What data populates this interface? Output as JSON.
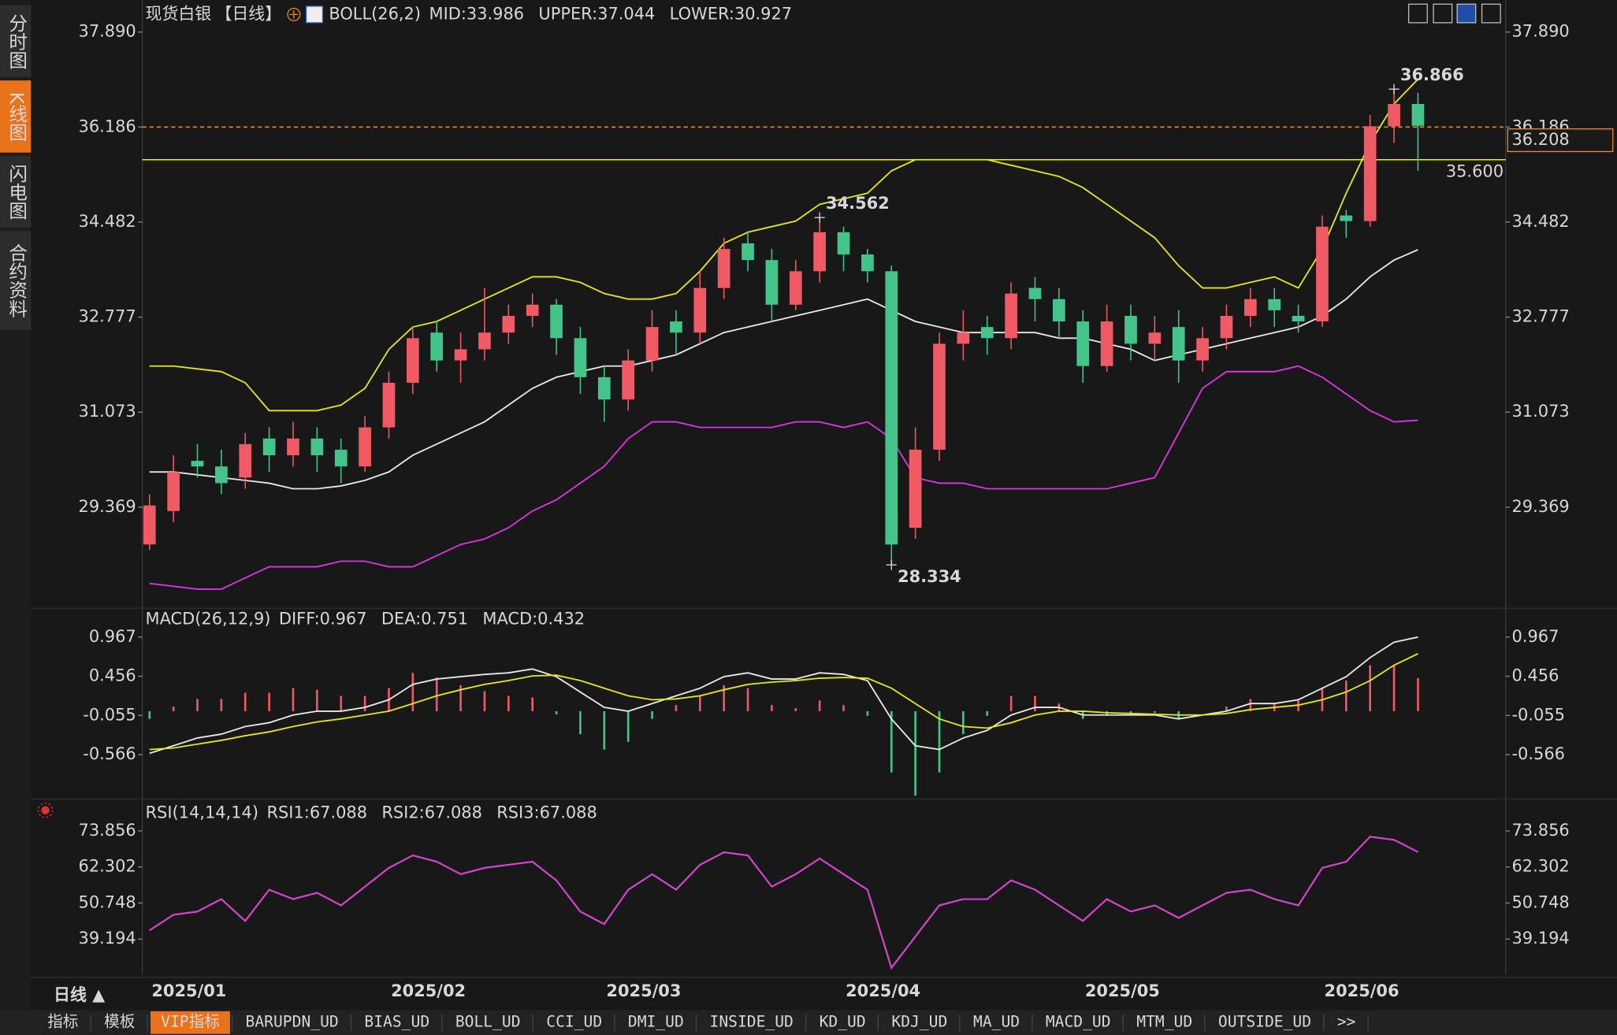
{
  "chart_data": [
    {
      "type": "candlestick",
      "title": "现货白银",
      "period": "【日线】",
      "indicator": "BOLL(26,2)",
      "categories": [
        "2025/01",
        null,
        null,
        null,
        null,
        null,
        null,
        null,
        null,
        null,
        "2025/02",
        null,
        null,
        null,
        null,
        null,
        null,
        null,
        null,
        "2025/03",
        null,
        null,
        null,
        null,
        null,
        null,
        null,
        null,
        null,
        "2025/04",
        null,
        null,
        null,
        null,
        null,
        null,
        null,
        null,
        null,
        "2025/05",
        null,
        null,
        null,
        null,
        null,
        null,
        null,
        null,
        null,
        "2025/06",
        null,
        null,
        null,
        null
      ],
      "open": [
        28.7,
        29.3,
        30.2,
        30.1,
        29.9,
        30.6,
        30.3,
        30.6,
        30.4,
        30.1,
        30.8,
        31.6,
        32.5,
        32.0,
        32.2,
        32.5,
        32.8,
        33.0,
        32.4,
        31.7,
        31.3,
        32.0,
        32.7,
        32.5,
        33.3,
        34.1,
        33.8,
        33.0,
        33.6,
        34.3,
        33.9,
        33.6,
        29.0,
        30.4,
        32.3,
        32.6,
        32.4,
        33.3,
        33.1,
        32.7,
        31.9,
        32.8,
        32.3,
        32.6,
        32.0,
        32.4,
        32.8,
        33.1,
        32.8,
        32.7,
        34.6,
        34.5,
        36.2,
        36.6
      ],
      "high": [
        29.6,
        30.3,
        30.5,
        30.4,
        30.7,
        30.8,
        30.9,
        30.8,
        30.6,
        31.0,
        31.8,
        32.6,
        32.7,
        32.5,
        33.3,
        33.0,
        33.2,
        33.1,
        32.6,
        31.9,
        32.2,
        32.9,
        32.9,
        33.6,
        34.2,
        34.3,
        34.0,
        33.8,
        34.562,
        34.4,
        34.0,
        33.7,
        30.8,
        32.5,
        32.9,
        32.8,
        33.4,
        33.5,
        33.3,
        32.9,
        33.0,
        33.0,
        32.8,
        32.9,
        32.6,
        33.0,
        33.3,
        33.3,
        33.0,
        34.6,
        34.7,
        36.4,
        36.866,
        36.8
      ],
      "low": [
        28.6,
        29.1,
        29.9,
        29.6,
        29.7,
        30.0,
        30.1,
        30.0,
        29.8,
        30.0,
        30.6,
        31.4,
        31.8,
        31.6,
        32.0,
        32.3,
        32.6,
        32.1,
        31.4,
        30.9,
        31.1,
        31.8,
        32.1,
        32.3,
        33.1,
        33.6,
        32.7,
        32.9,
        33.4,
        33.6,
        33.4,
        28.334,
        28.8,
        30.2,
        32.0,
        32.1,
        32.2,
        32.7,
        32.4,
        31.6,
        31.8,
        32.0,
        32.0,
        31.6,
        31.8,
        32.2,
        32.6,
        32.6,
        32.5,
        32.6,
        34.2,
        34.4,
        35.9,
        35.4
      ],
      "close": [
        29.4,
        30.0,
        30.1,
        29.8,
        30.5,
        30.3,
        30.6,
        30.3,
        30.1,
        30.8,
        31.6,
        32.4,
        32.0,
        32.2,
        32.5,
        32.8,
        33.0,
        32.4,
        31.7,
        31.3,
        32.0,
        32.6,
        32.5,
        33.3,
        34.0,
        33.8,
        33.0,
        33.6,
        34.3,
        33.9,
        33.6,
        28.7,
        30.4,
        32.3,
        32.5,
        32.4,
        33.2,
        33.1,
        32.7,
        31.9,
        32.7,
        32.3,
        32.5,
        32.0,
        32.4,
        32.8,
        33.1,
        32.9,
        32.7,
        34.4,
        34.5,
        36.2,
        36.6,
        36.208
      ],
      "up_color": "#ef5a64",
      "down_color": "#44c48a",
      "series": [
        {
          "name": "MID:33.986",
          "color": "#e8e8e8",
          "values": [
            30.0,
            30.0,
            29.95,
            29.9,
            29.85,
            29.8,
            29.7,
            29.7,
            29.75,
            29.85,
            30.0,
            30.3,
            30.5,
            30.7,
            30.9,
            31.2,
            31.5,
            31.7,
            31.8,
            31.9,
            31.9,
            32.0,
            32.1,
            32.3,
            32.5,
            32.6,
            32.7,
            32.8,
            32.9,
            33.0,
            33.1,
            32.9,
            32.7,
            32.6,
            32.5,
            32.5,
            32.5,
            32.5,
            32.4,
            32.4,
            32.3,
            32.2,
            32.0,
            32.1,
            32.2,
            32.3,
            32.4,
            32.5,
            32.6,
            32.8,
            33.1,
            33.5,
            33.8,
            33.986
          ]
        },
        {
          "name": "UPPER:37.044",
          "color": "#e6e61e",
          "values": [
            31.9,
            31.9,
            31.85,
            31.8,
            31.6,
            31.1,
            31.1,
            31.1,
            31.2,
            31.5,
            32.2,
            32.6,
            32.7,
            32.9,
            33.1,
            33.3,
            33.5,
            33.5,
            33.4,
            33.2,
            33.1,
            33.1,
            33.2,
            33.6,
            34.1,
            34.3,
            34.4,
            34.5,
            34.8,
            34.9,
            35.0,
            35.4,
            35.6,
            35.6,
            35.6,
            35.6,
            35.5,
            35.4,
            35.3,
            35.1,
            34.8,
            34.5,
            34.2,
            33.7,
            33.3,
            33.3,
            33.4,
            33.5,
            33.3,
            34.0,
            35.0,
            35.9,
            36.6,
            37.044
          ]
        },
        {
          "name": "LOWER:30.927",
          "color": "#e032e6",
          "values": [
            28.0,
            27.95,
            27.9,
            27.9,
            28.1,
            28.3,
            28.3,
            28.3,
            28.4,
            28.4,
            28.3,
            28.3,
            28.5,
            28.7,
            28.8,
            29.0,
            29.3,
            29.5,
            29.8,
            30.1,
            30.6,
            30.9,
            30.9,
            30.8,
            30.8,
            30.8,
            30.8,
            30.9,
            30.9,
            30.8,
            30.9,
            30.6,
            29.9,
            29.8,
            29.8,
            29.7,
            29.7,
            29.7,
            29.7,
            29.7,
            29.7,
            29.8,
            29.9,
            30.7,
            31.5,
            31.8,
            31.8,
            31.8,
            31.9,
            31.7,
            31.4,
            31.1,
            30.9,
            30.927
          ]
        }
      ],
      "hlines": [
        {
          "value": 36.186,
          "color": "#e0882c",
          "style": "dashed"
        },
        {
          "value": 35.6,
          "label": "35.600",
          "color": "#f0f020",
          "style": "solid"
        }
      ],
      "labeled_highs": [
        28,
        52
      ],
      "labeled_lows": [
        31
      ],
      "last_color": "#f08a24",
      "ylim": [
        27.742,
        38.371
      ],
      "yticks": [
        {
          "value": 37.89,
          "label": "37.890"
        },
        36.186,
        34.482,
        32.777,
        31.073,
        29.369
      ]
    },
    {
      "type": "macd",
      "title": "MACD(26,12,9)",
      "up_color": "#ef5a64",
      "down_color": "#44c48a",
      "series": [
        {
          "name": "DIFF:0.967",
          "color": "#e8e8e8",
          "values": [
            -0.55,
            -0.45,
            -0.35,
            -0.3,
            -0.2,
            -0.15,
            -0.05,
            0.0,
            0.0,
            0.05,
            0.15,
            0.35,
            0.42,
            0.45,
            0.48,
            0.5,
            0.55,
            0.45,
            0.25,
            0.05,
            0.0,
            0.1,
            0.2,
            0.3,
            0.45,
            0.5,
            0.42,
            0.42,
            0.5,
            0.48,
            0.4,
            -0.1,
            -0.45,
            -0.5,
            -0.35,
            -0.25,
            -0.05,
            0.05,
            0.05,
            -0.05,
            -0.05,
            -0.05,
            -0.05,
            -0.1,
            -0.05,
            0.0,
            0.1,
            0.1,
            0.15,
            0.3,
            0.45,
            0.7,
            0.9,
            0.967
          ]
        },
        {
          "name": "DEA:0.751",
          "color": "#e6e61e",
          "values": [
            -0.5,
            -0.48,
            -0.43,
            -0.38,
            -0.32,
            -0.27,
            -0.2,
            -0.14,
            -0.1,
            -0.05,
            0.0,
            0.1,
            0.2,
            0.28,
            0.35,
            0.4,
            0.46,
            0.47,
            0.4,
            0.3,
            0.2,
            0.15,
            0.16,
            0.2,
            0.28,
            0.35,
            0.38,
            0.4,
            0.43,
            0.44,
            0.43,
            0.3,
            0.1,
            -0.1,
            -0.2,
            -0.22,
            -0.15,
            -0.05,
            0.0,
            0.0,
            -0.02,
            -0.03,
            -0.04,
            -0.05,
            -0.05,
            -0.03,
            0.02,
            0.05,
            0.08,
            0.15,
            0.25,
            0.4,
            0.6,
            0.751
          ]
        },
        {
          "name": "MACD:0.432",
          "color": "#e032e6",
          "kind": "bar",
          "values": [
            -0.1,
            0.06,
            0.16,
            0.16,
            0.24,
            0.24,
            0.3,
            0.28,
            0.2,
            0.2,
            0.3,
            0.5,
            0.44,
            0.34,
            0.26,
            0.2,
            0.18,
            -0.04,
            -0.3,
            -0.5,
            -0.4,
            -0.1,
            0.08,
            0.2,
            0.34,
            0.3,
            0.08,
            0.04,
            0.14,
            0.08,
            -0.06,
            -0.8,
            -1.1,
            -0.8,
            -0.3,
            -0.06,
            0.2,
            0.2,
            0.1,
            -0.1,
            -0.06,
            -0.04,
            -0.02,
            -0.1,
            0.0,
            0.06,
            0.16,
            0.1,
            0.14,
            0.3,
            0.4,
            0.6,
            0.6,
            0.432
          ]
        }
      ],
      "ylim": [
        -1.144,
        1.209
      ],
      "yticks": [
        0.967,
        0.456,
        -0.055,
        -0.566
      ]
    },
    {
      "type": "line",
      "title": "RSI(14,14,14)",
      "series": [
        {
          "name": "RSI1:67.088",
          "color": "#e8e8e8",
          "values": [
            42,
            47,
            48,
            52,
            45,
            55,
            52,
            54,
            50,
            56,
            62,
            66,
            64,
            60,
            62,
            63,
            64,
            58,
            48,
            44,
            55,
            60,
            55,
            63,
            67,
            66,
            56,
            60,
            65,
            60,
            55,
            30,
            40,
            50,
            52,
            52,
            58,
            55,
            50,
            45,
            52,
            48,
            50,
            46,
            50,
            54,
            55,
            52,
            50,
            62,
            64,
            72,
            71,
            67.088
          ]
        },
        {
          "name": "RSI2:67.088",
          "color": "#e6e61e",
          "values": [
            42,
            47,
            48,
            52,
            45,
            55,
            52,
            54,
            50,
            56,
            62,
            66,
            64,
            60,
            62,
            63,
            64,
            58,
            48,
            44,
            55,
            60,
            55,
            63,
            67,
            66,
            56,
            60,
            65,
            60,
            55,
            30,
            40,
            50,
            52,
            52,
            58,
            55,
            50,
            45,
            52,
            48,
            50,
            46,
            50,
            54,
            55,
            52,
            50,
            62,
            64,
            72,
            71,
            67.088
          ]
        },
        {
          "name": "RSI3:67.088",
          "color": "#e032e6",
          "values": [
            42,
            47,
            48,
            52,
            45,
            55,
            52,
            54,
            50,
            56,
            62,
            66,
            64,
            60,
            62,
            63,
            64,
            58,
            48,
            44,
            55,
            60,
            55,
            63,
            67,
            66,
            56,
            60,
            65,
            60,
            55,
            30,
            40,
            50,
            52,
            52,
            58,
            55,
            50,
            45,
            52,
            48,
            50,
            46,
            50,
            54,
            55,
            52,
            50,
            62,
            64,
            72,
            71,
            67.088
          ]
        }
      ],
      "ylim": [
        27.97,
        84.09
      ],
      "yticks": [
        73.856,
        62.302,
        50.748,
        39.194
      ]
    }
  ],
  "ui": {
    "sidebar": [
      "分时图",
      "K线图",
      "闪电图",
      "合约资料"
    ],
    "sidebar_active": 1,
    "period_button": "日线 ▲",
    "tabs": [
      "指标",
      "模板",
      "VIP指标",
      "BARUPDN_UD",
      "BIAS_UD",
      "BOLL_UD",
      "CCI_UD",
      "DMI_UD",
      "INSIDE_UD",
      "KD_UD",
      "KDJ_UD",
      "MA_UD",
      "MACD_UD",
      "MTM_UD",
      "OUTSIDE_UD",
      ">>"
    ],
    "tabs_active": 2
  }
}
